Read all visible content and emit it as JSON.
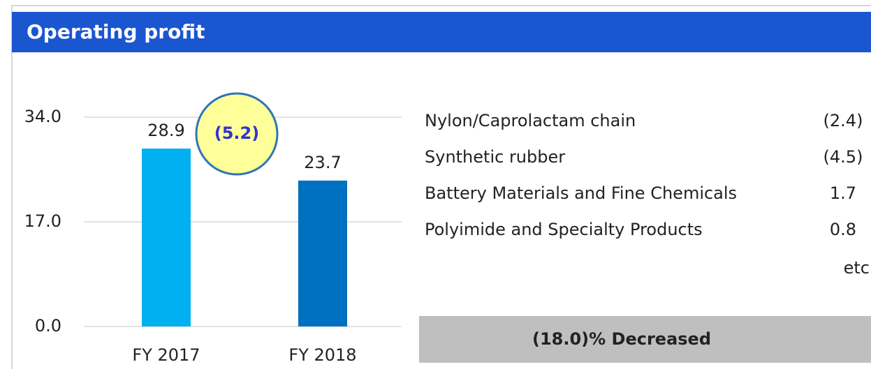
{
  "header": {
    "title": "Operating profit"
  },
  "chart_data": {
    "type": "bar",
    "categories": [
      "FY 2017",
      "FY 2018"
    ],
    "values": [
      28.9,
      23.7
    ],
    "colors": [
      "#00b0f0",
      "#0070c0"
    ],
    "ylim": [
      0,
      34
    ],
    "yticks": [
      {
        "value": 0,
        "label": "0.0"
      },
      {
        "value": 17,
        "label": "17.0"
      },
      {
        "value": 34,
        "label": "34.0"
      }
    ],
    "grid": true,
    "annotation": "(5.2)"
  },
  "breakdown": {
    "rows": [
      [
        "Nylon/Caprolactam chain",
        "(2.4)"
      ],
      [
        "Synthetic rubber",
        "(4.5)"
      ],
      [
        "Battery Materials and Fine Chemicals",
        "1.7"
      ],
      [
        "Polyimide and Specialty Products",
        "0.8"
      ]
    ],
    "note": "etc"
  },
  "summary": "(18.0)% Decreased"
}
